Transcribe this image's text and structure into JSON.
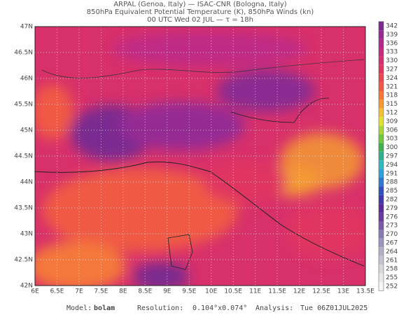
{
  "header": {
    "lines": [
      "ARPAL (Genoa, Italy)  —  ISAC-CNR (Bologna, Italy)",
      "850hPa Equivalent Potential Temperature (K), 850hPa Winds (kn)",
      "00 UTC Wed 02 JUL  —  τ = 18h"
    ]
  },
  "map": {
    "lon_ticks": [
      "6E",
      "6.5E",
      "7E",
      "7.5E",
      "8E",
      "8.5E",
      "9E",
      "9.5E",
      "10E",
      "10.5E",
      "11E",
      "11.5E",
      "12E",
      "12.5E",
      "13E",
      "13.5E"
    ],
    "lat_ticks": [
      "47N",
      "46.5N",
      "46N",
      "45.5N",
      "45N",
      "44.5N",
      "44N",
      "43.5N",
      "43N",
      "42.5N",
      "42N"
    ]
  },
  "colorbar": {
    "ticks": [
      342,
      339,
      336,
      333,
      330,
      327,
      324,
      321,
      318,
      315,
      312,
      309,
      306,
      303,
      300,
      297,
      294,
      291,
      288,
      285,
      282,
      279,
      276,
      273,
      270,
      267,
      264,
      261,
      258,
      255,
      252
    ],
    "colors": [
      "#7a2a90",
      "#962a94",
      "#b02a8e",
      "#c42c80",
      "#d43070",
      "#e03660",
      "#ea4850",
      "#f05a44",
      "#f4783a",
      "#f49a34",
      "#f2c030",
      "#e0e030",
      "#a8d838",
      "#70c840",
      "#40b050",
      "#30b090",
      "#30b8c0",
      "#30a0d8",
      "#3078d0",
      "#3050c0",
      "#4038a8",
      "#5a2a98",
      "#6a3a9a",
      "#7a5aa8",
      "#8a7ab4",
      "#9a98c0",
      "#b0b0c8",
      "#c4c4d0",
      "#d8d8dc",
      "#e8e8ec",
      "#f6f6f8"
    ]
  },
  "footer": {
    "model_label": "Model:",
    "model": "bolam",
    "resolution_label": "Resolution:",
    "resolution": "0.104°x0.074°",
    "analysis_label": "Analysis:",
    "analysis": "Tue 06Z01JUL2025"
  }
}
